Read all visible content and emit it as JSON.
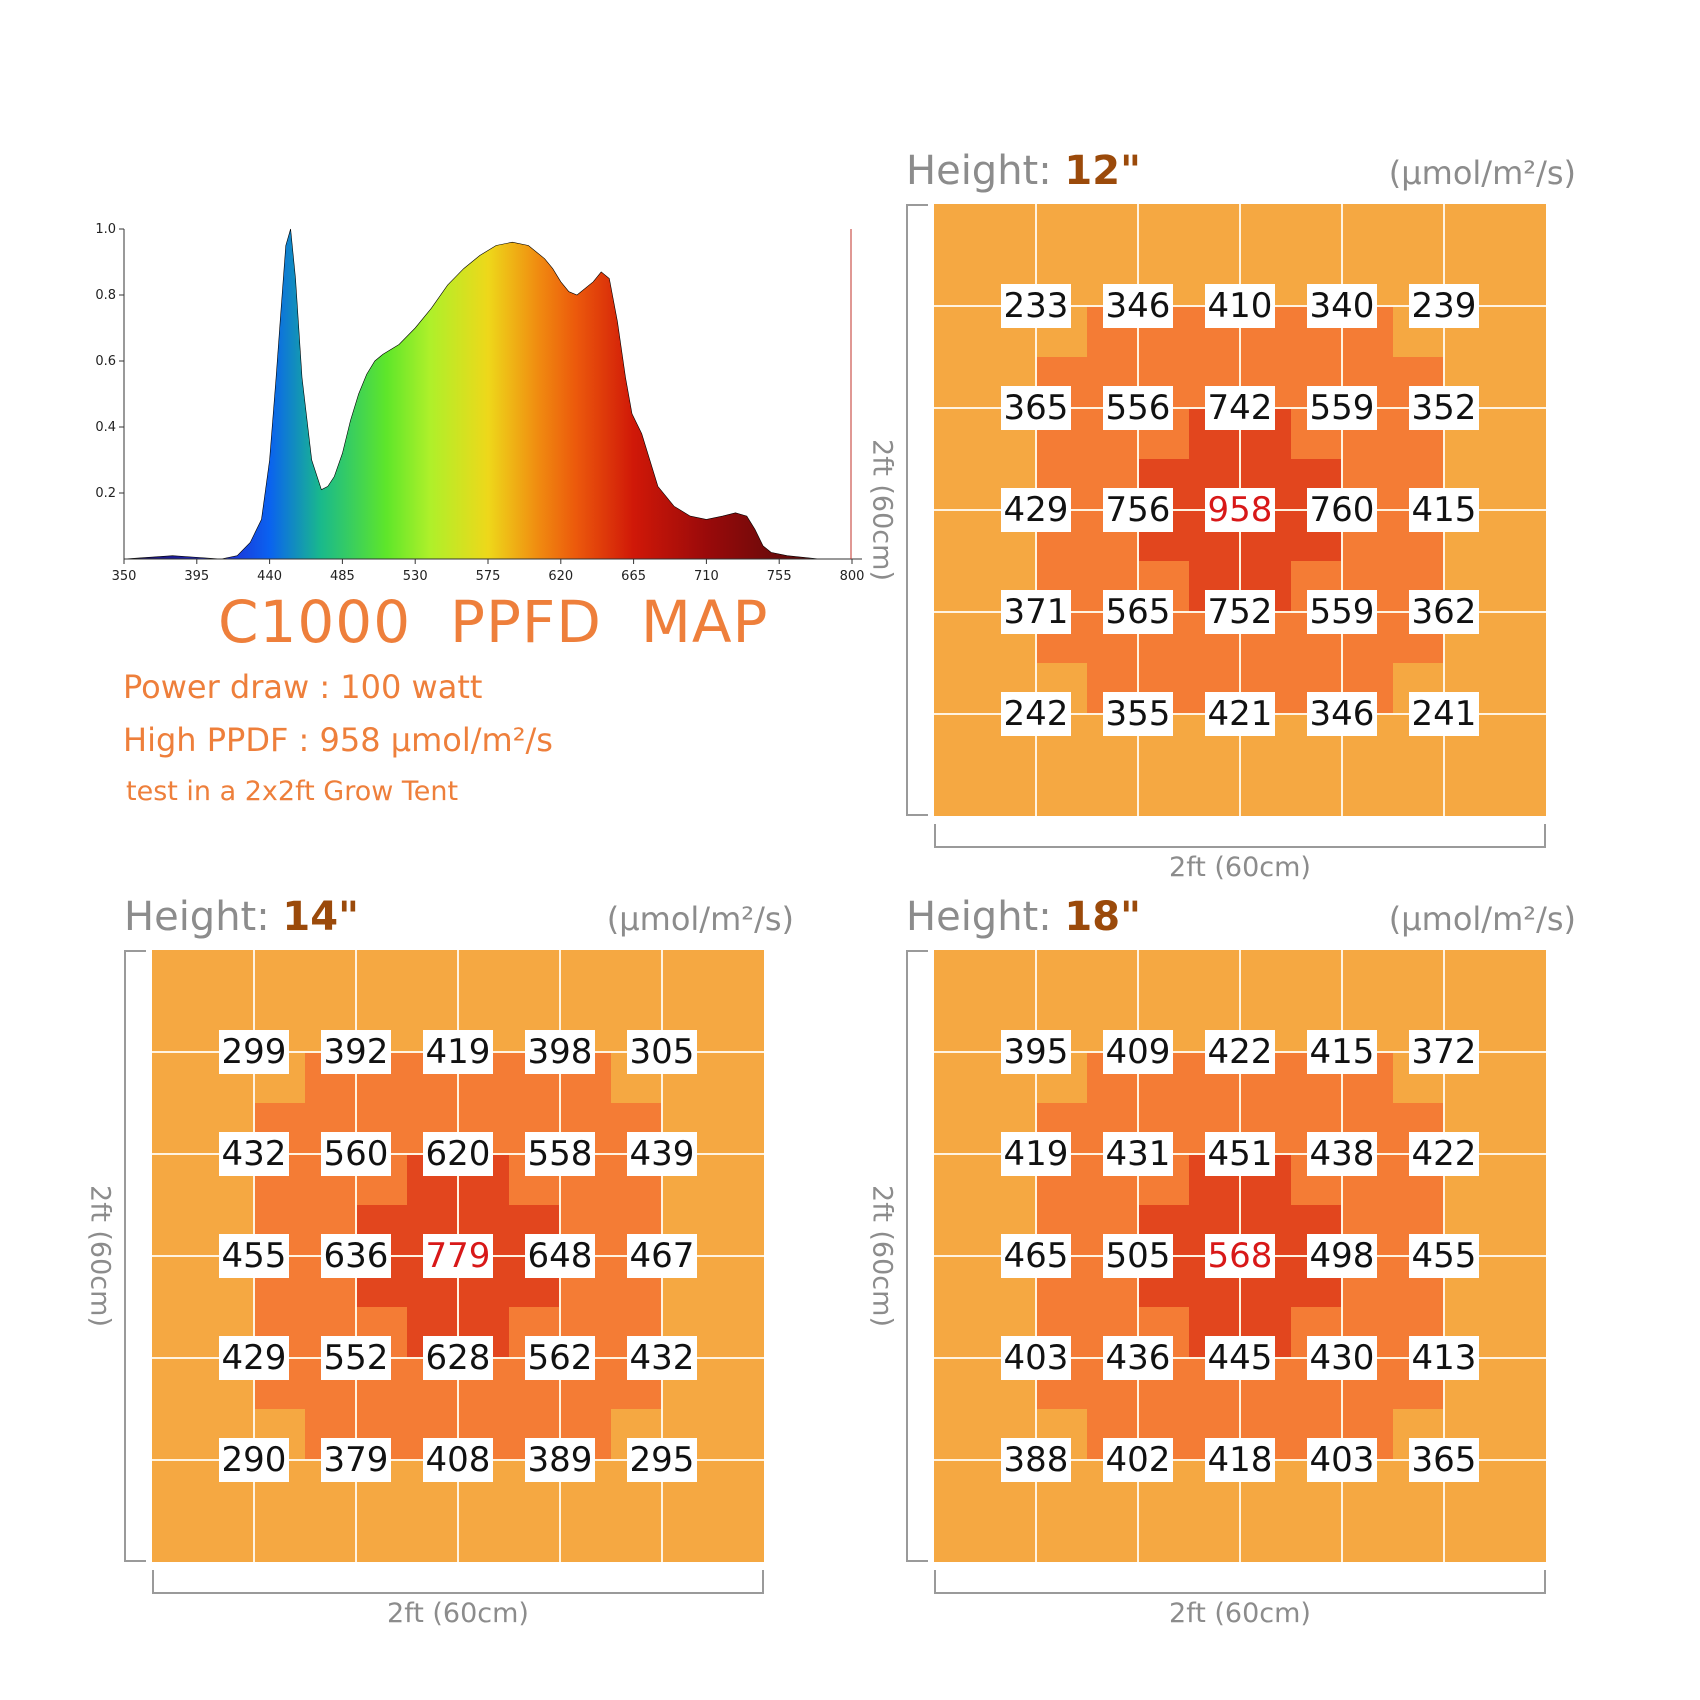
{
  "header": {
    "title": "C1000  PPFD  MAP",
    "power_draw": "Power draw : 100 watt",
    "high_ppfd": "High PPDF : 958 μmol/m²/s",
    "test_note": "test in a 2x2ft Grow Tent"
  },
  "colors": {
    "accent": "#ee7f3b",
    "height_value": "#9b4a0a",
    "grid_outer": "#f5a842",
    "grid_mid": "#f47c35",
    "grid_inner": "#e2461e",
    "peak_text": "#d81818"
  },
  "chart_data": [
    {
      "type": "area",
      "title": "",
      "xlabel": "",
      "ylabel": "",
      "xlim": [
        350,
        800
      ],
      "ylim": [
        0,
        1.0
      ],
      "x_ticks": [
        "350",
        "395",
        "440",
        "485",
        "530",
        "575",
        "620",
        "665",
        "710",
        "755",
        "800"
      ],
      "y_ticks": [
        "1.0",
        "0.8",
        "0.6",
        "0.4",
        "0.2"
      ],
      "grid": false,
      "fill": "visible-spectrum gradient",
      "x": [
        350,
        380,
        410,
        420,
        428,
        435,
        440,
        444,
        447,
        450,
        453,
        456,
        460,
        466,
        472,
        476,
        480,
        485,
        490,
        495,
        500,
        505,
        510,
        520,
        530,
        540,
        550,
        560,
        570,
        580,
        590,
        600,
        610,
        615,
        620,
        625,
        630,
        640,
        645,
        650,
        655,
        660,
        664,
        670,
        675,
        680,
        690,
        700,
        710,
        720,
        728,
        735,
        740,
        745,
        750,
        760,
        780,
        800
      ],
      "values": [
        0.0,
        0.01,
        0.0,
        0.01,
        0.05,
        0.12,
        0.3,
        0.55,
        0.75,
        0.95,
        1.0,
        0.85,
        0.55,
        0.3,
        0.21,
        0.22,
        0.25,
        0.32,
        0.42,
        0.5,
        0.56,
        0.6,
        0.62,
        0.65,
        0.7,
        0.76,
        0.83,
        0.88,
        0.92,
        0.95,
        0.96,
        0.95,
        0.91,
        0.88,
        0.84,
        0.81,
        0.8,
        0.84,
        0.87,
        0.85,
        0.72,
        0.55,
        0.44,
        0.38,
        0.3,
        0.22,
        0.16,
        0.13,
        0.12,
        0.13,
        0.14,
        0.13,
        0.09,
        0.04,
        0.02,
        0.01,
        0.0,
        0.0
      ]
    },
    {
      "type": "heatmap",
      "height_label": "Height:",
      "height_value": "12\"",
      "unit": "(μmol/m²/s)",
      "width_label": "2ft (60cm)",
      "depth_label": "2ft (60cm)",
      "values": [
        [
          233,
          346,
          410,
          340,
          239
        ],
        [
          365,
          556,
          742,
          559,
          352
        ],
        [
          429,
          756,
          958,
          760,
          415
        ],
        [
          371,
          565,
          752,
          559,
          362
        ],
        [
          242,
          355,
          421,
          346,
          241
        ]
      ],
      "peak": [
        2,
        2
      ]
    },
    {
      "type": "heatmap",
      "height_label": "Height:",
      "height_value": "14\"",
      "unit": "(μmol/m²/s)",
      "width_label": "2ft (60cm)",
      "depth_label": "2ft (60cm)",
      "values": [
        [
          299,
          392,
          419,
          398,
          305
        ],
        [
          432,
          560,
          620,
          558,
          439
        ],
        [
          455,
          636,
          779,
          648,
          467
        ],
        [
          429,
          552,
          628,
          562,
          432
        ],
        [
          290,
          379,
          408,
          389,
          295
        ]
      ],
      "peak": [
        2,
        2
      ]
    },
    {
      "type": "heatmap",
      "height_label": "Height:",
      "height_value": "18\"",
      "unit": "(μmol/m²/s)",
      "width_label": "2ft (60cm)",
      "depth_label": "2ft (60cm)",
      "values": [
        [
          395,
          409,
          422,
          415,
          372
        ],
        [
          419,
          431,
          451,
          438,
          422
        ],
        [
          465,
          505,
          568,
          498,
          455
        ],
        [
          403,
          436,
          445,
          430,
          413
        ],
        [
          388,
          402,
          418,
          403,
          365
        ]
      ],
      "peak": [
        2,
        2
      ]
    }
  ]
}
